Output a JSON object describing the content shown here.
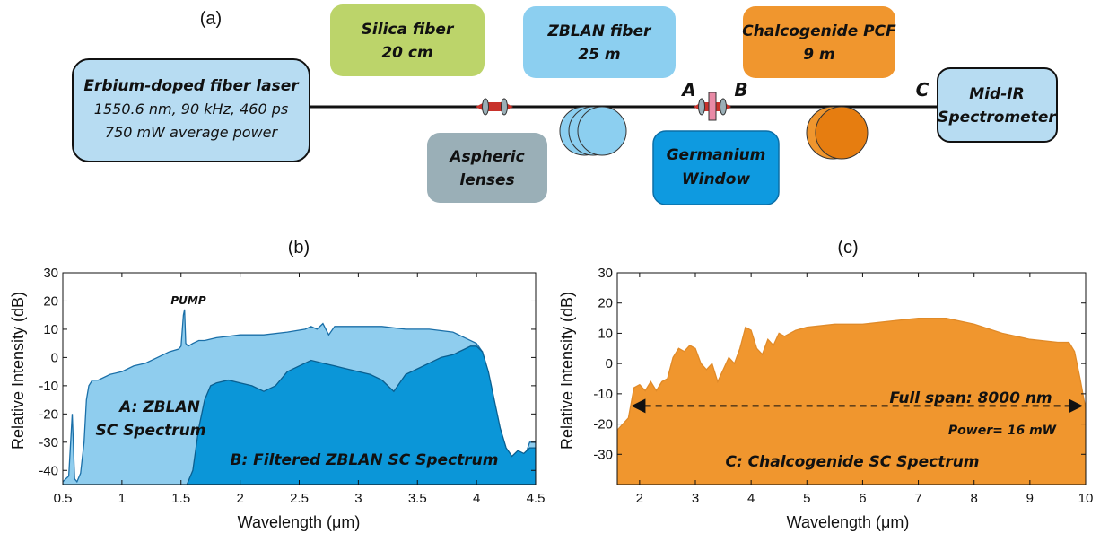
{
  "setup": {
    "panel_label": "(a)",
    "laser": {
      "title": "Erbium-doped fiber laser",
      "line1": "1550.6 nm, 90 kHz, 460 ps",
      "line2": "750 mW average power"
    },
    "silica": {
      "line1": "Silica fiber",
      "line2": "20 cm"
    },
    "zblan": {
      "line1": "ZBLAN fiber",
      "line2": "25 m"
    },
    "chalcogenide": {
      "line1": "Chalcogenide PCF",
      "line2": "9 m"
    },
    "spectrometer": {
      "line1": "Mid-IR",
      "line2": "Spectrometer"
    },
    "lenses": {
      "line1": "Aspheric",
      "line2": "lenses"
    },
    "window": {
      "line1": "Germanium",
      "line2": "Window"
    },
    "point_a": "A",
    "point_b": "B",
    "point_c": "C",
    "colors": {
      "laser": "#b7dcf2",
      "silica": "#bcd46a",
      "zblan": "#8ccff0",
      "chalcogenide": "#f0962e",
      "spectrometer": "#b7dcf2",
      "lenses": "#9aafb7",
      "window": "#0e9ae0",
      "lens_red": "#c8322b",
      "window_pink": "#e98aa6"
    }
  },
  "chart_data": [
    {
      "type": "area",
      "panel_label": "(b)",
      "xlabel": "Wavelength (μm)",
      "ylabel": "Relative Intensity (dB)",
      "xlim": [
        0.5,
        4.5
      ],
      "ylim": [
        -45,
        30
      ],
      "xticks": [
        "0.5",
        "1",
        "1.5",
        "2",
        "2.5",
        "3",
        "3.5",
        "4",
        "4.5"
      ],
      "yticks": [
        "30",
        "20",
        "10",
        "0",
        "-10",
        "-20",
        "-30",
        "-40"
      ],
      "annotation": "PUMP",
      "series": [
        {
          "name": "A: ZBLAN SC Spectrum",
          "label_line1": "A: ZBLAN",
          "label_line2": "SC Spectrum",
          "color": "#8fcdee",
          "x": [
            0.5,
            0.55,
            0.58,
            0.6,
            0.62,
            0.65,
            0.68,
            0.7,
            0.72,
            0.75,
            0.8,
            0.9,
            1.0,
            1.1,
            1.2,
            1.3,
            1.4,
            1.48,
            1.5,
            1.52,
            1.53,
            1.54,
            1.56,
            1.6,
            1.65,
            1.7,
            1.8,
            2.0,
            2.2,
            2.4,
            2.55,
            2.6,
            2.65,
            2.7,
            2.75,
            2.8,
            3.0,
            3.2,
            3.4,
            3.6,
            3.8,
            3.9,
            4.0,
            4.05,
            4.1,
            4.15,
            4.2,
            4.25,
            4.3,
            4.35,
            4.4,
            4.45,
            4.5
          ],
          "y": [
            -44,
            -42,
            -20,
            -43,
            -44,
            -41,
            -30,
            -15,
            -10,
            -8,
            -8,
            -6,
            -5,
            -3,
            -2,
            0,
            2,
            3,
            4,
            15,
            17,
            5,
            4,
            5,
            6,
            6,
            7,
            8,
            8,
            9,
            10,
            11,
            10,
            12,
            8,
            11,
            11,
            11,
            10,
            10,
            9,
            7,
            5,
            2,
            -10,
            -20,
            -30,
            -35,
            -38,
            -35,
            -36,
            -30,
            -30
          ]
        },
        {
          "name": "B: Filtered ZBLAN SC Spectrum",
          "label": "B: Filtered ZBLAN SC Spectrum",
          "color": "#0b96d8",
          "x": [
            1.55,
            1.6,
            1.65,
            1.7,
            1.75,
            1.8,
            1.9,
            2.0,
            2.1,
            2.2,
            2.3,
            2.4,
            2.5,
            2.6,
            2.7,
            2.8,
            2.9,
            3.0,
            3.1,
            3.2,
            3.3,
            3.4,
            3.5,
            3.6,
            3.7,
            3.8,
            3.9,
            3.95,
            4.0,
            4.05,
            4.1,
            4.15,
            4.2,
            4.25,
            4.3,
            4.35,
            4.4,
            4.45,
            4.5
          ],
          "y": [
            -45,
            -40,
            -25,
            -15,
            -10,
            -9,
            -8,
            -9,
            -10,
            -12,
            -10,
            -5,
            -3,
            -1,
            -2,
            -3,
            -4,
            -5,
            -6,
            -8,
            -12,
            -6,
            -4,
            -2,
            0,
            1,
            3,
            4,
            4,
            2,
            -5,
            -15,
            -25,
            -32,
            -35,
            -33,
            -34,
            -32,
            -32
          ]
        }
      ]
    },
    {
      "type": "area",
      "panel_label": "(c)",
      "xlabel": "Wavelength (μm)",
      "ylabel": "Relative Intensity (dB)",
      "xlim": [
        1.6,
        10
      ],
      "ylim": [
        -40,
        30
      ],
      "xticks": [
        "2",
        "3",
        "4",
        "5",
        "6",
        "7",
        "8",
        "9",
        "10"
      ],
      "yticks": [
        "30",
        "20",
        "10",
        "0",
        "-10",
        "-20",
        "-30"
      ],
      "span_label": "Full span: 8000 nm",
      "span_range": [
        1.9,
        9.9
      ],
      "span_y": -14,
      "power_label": "Power= 16 mW",
      "series": [
        {
          "name": "C: Chalcogenide SC Spectrum",
          "label": "C: Chalcogenide SC Spectrum",
          "color": "#f0962e",
          "x": [
            1.6,
            1.7,
            1.8,
            1.9,
            2.0,
            2.1,
            2.2,
            2.3,
            2.4,
            2.5,
            2.6,
            2.7,
            2.8,
            2.9,
            3.0,
            3.1,
            3.2,
            3.3,
            3.4,
            3.5,
            3.6,
            3.7,
            3.8,
            3.9,
            4.0,
            4.1,
            4.2,
            4.3,
            4.4,
            4.5,
            4.6,
            4.8,
            5.0,
            5.5,
            6.0,
            6.5,
            7.0,
            7.5,
            8.0,
            8.5,
            9.0,
            9.5,
            9.7,
            9.8,
            9.9,
            10.0
          ],
          "y": [
            -22,
            -20,
            -18,
            -8,
            -7,
            -9,
            -6,
            -9,
            -6,
            -5,
            2,
            5,
            4,
            6,
            5,
            0,
            -2,
            0,
            -6,
            -2,
            2,
            0,
            5,
            12,
            11,
            5,
            3,
            8,
            6,
            10,
            9,
            11,
            12,
            13,
            13,
            14,
            15,
            15,
            13,
            10,
            8,
            7,
            7,
            4,
            -5,
            -15
          ]
        }
      ]
    }
  ]
}
